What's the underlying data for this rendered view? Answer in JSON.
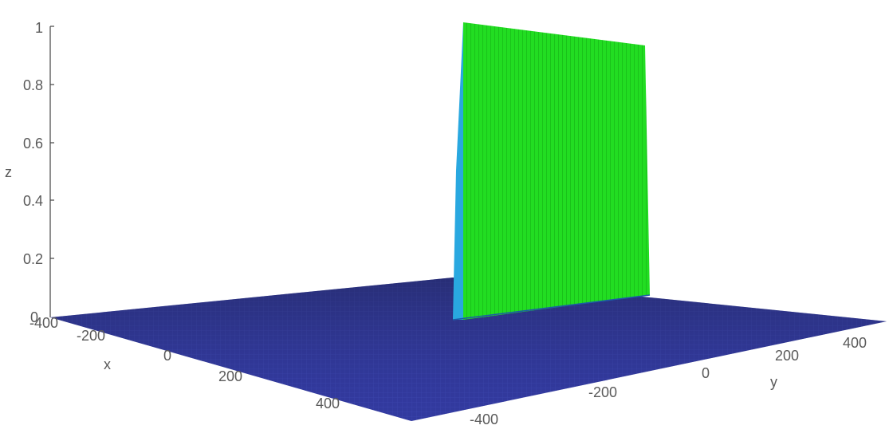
{
  "chart_data": {
    "type": "surface",
    "title": "",
    "xlabel": "x",
    "ylabel": "y",
    "zlabel": "z",
    "xlim": [
      -400,
      400
    ],
    "ylim": [
      -400,
      400
    ],
    "zlim": [
      0,
      1
    ],
    "x_ticks": [
      "-400",
      "-200",
      "0",
      "200",
      "400"
    ],
    "y_ticks": [
      "-400",
      "-200",
      "0",
      "200",
      "400"
    ],
    "z_ticks": [
      "0",
      "0.2",
      "0.4",
      "0.6",
      "0.8",
      "1"
    ],
    "surface": {
      "description_of_values": "z = 1 on a narrow band of x near 0 for y from 0 to 400, z = 0 elsewhere",
      "wall_x": 0,
      "wall_y_range": [
        0,
        400
      ],
      "wall_height": 1,
      "floor_height": 0
    },
    "colors": {
      "floor": "#2e3592",
      "wall": "#22dd22",
      "edge": "#29a8e0"
    },
    "grid": false,
    "legend": "none"
  }
}
